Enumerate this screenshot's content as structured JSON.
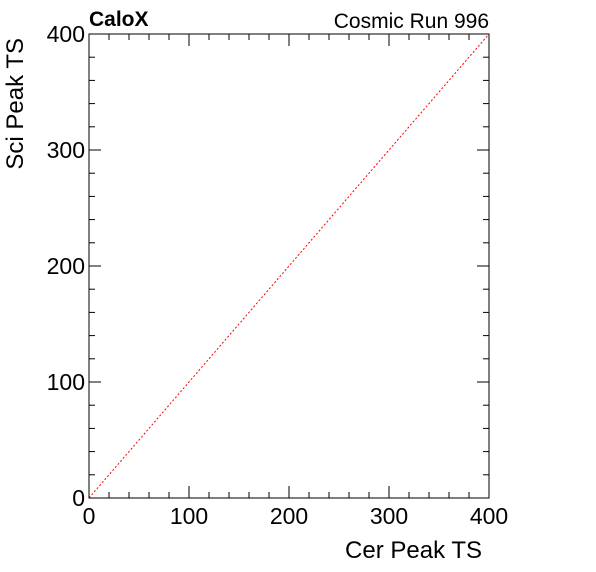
{
  "header": {
    "brand": "CaloX",
    "run_label": "Cosmic Run 996"
  },
  "colors": {
    "frame": "#000000",
    "diagonal": "#ff0000",
    "background": "#ffffff"
  },
  "chart_data": {
    "type": "scatter",
    "title": "",
    "xlabel": "Cer Peak TS",
    "ylabel": "Sci Peak TS",
    "xlim": [
      0,
      400
    ],
    "ylim": [
      0,
      400
    ],
    "x_major_ticks": [
      0,
      100,
      200,
      300,
      400
    ],
    "y_major_ticks": [
      0,
      100,
      200,
      300,
      400
    ],
    "x_tick_labels": [
      "0",
      "100",
      "200",
      "300",
      "400"
    ],
    "y_tick_labels": [
      "0",
      "100",
      "200",
      "300",
      "400"
    ],
    "minor_divisions": 5,
    "grid": false,
    "legend": null,
    "series": [],
    "annotations": [
      {
        "kind": "reference-line",
        "style": "dotted",
        "from": [
          0,
          0
        ],
        "to": [
          400,
          400
        ]
      }
    ]
  }
}
